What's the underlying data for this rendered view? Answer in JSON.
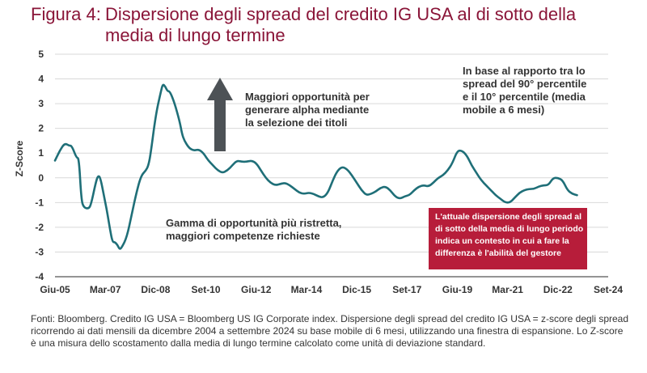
{
  "header": {
    "figure_label": "Figura 4:",
    "title_line1": "Dispersione degli spread del credito IG USA al di sotto della",
    "title_line2": "media di lungo termine"
  },
  "chart_data": {
    "type": "line",
    "ylabel": "Z-Score",
    "xlabel": "",
    "ylim": [
      -4,
      5
    ],
    "yticks": [
      "5",
      "4",
      "3",
      "2",
      "1",
      "0",
      "-1",
      "-2",
      "-3",
      "-4"
    ],
    "xtick_labels": [
      "Giu-05",
      "Mar-07",
      "Dic-08",
      "Set-10",
      "Giu-12",
      "Mar-14",
      "Dic-15",
      "Set-17",
      "Giu-19",
      "Mar-21",
      "Dic-22",
      "Set-24"
    ],
    "x_range": [
      "2005-06",
      "2024-09"
    ],
    "grid": "horizontal",
    "line_color": "#1f6f78",
    "series": [
      {
        "name": "",
        "points": [
          [
            "2005-06",
            0.7
          ],
          [
            "2005-08",
            1.1
          ],
          [
            "2005-10",
            1.4
          ],
          [
            "2005-12",
            1.3
          ],
          [
            "2006-01",
            1.3
          ],
          [
            "2006-03",
            0.8
          ],
          [
            "2006-04",
            0.8
          ],
          [
            "2006-05",
            -0.9
          ],
          [
            "2006-06",
            -1.2
          ],
          [
            "2006-08",
            -1.25
          ],
          [
            "2006-09",
            -1.1
          ],
          [
            "2006-11",
            -0.2
          ],
          [
            "2006-12",
            0.1
          ],
          [
            "2007-01",
            0.0
          ],
          [
            "2007-03",
            -1.0
          ],
          [
            "2007-04",
            -1.5
          ],
          [
            "2007-05",
            -2.1
          ],
          [
            "2007-06",
            -2.6
          ],
          [
            "2007-07",
            -2.6
          ],
          [
            "2007-08",
            -2.7
          ],
          [
            "2007-09",
            -2.9
          ],
          [
            "2007-10",
            -2.8
          ],
          [
            "2007-12",
            -2.4
          ],
          [
            "2008-02",
            -1.5
          ],
          [
            "2008-04",
            -0.6
          ],
          [
            "2008-06",
            0.1
          ],
          [
            "2008-08",
            0.3
          ],
          [
            "2008-09",
            0.5
          ],
          [
            "2008-10",
            1.0
          ],
          [
            "2008-12",
            2.5
          ],
          [
            "2009-02",
            3.4
          ],
          [
            "2009-03",
            3.8
          ],
          [
            "2009-04",
            3.7
          ],
          [
            "2009-05",
            3.5
          ],
          [
            "2009-06",
            3.5
          ],
          [
            "2009-08",
            3.0
          ],
          [
            "2009-10",
            2.3
          ],
          [
            "2009-11",
            1.8
          ],
          [
            "2009-12",
            1.5
          ],
          [
            "2010-02",
            1.2
          ],
          [
            "2010-04",
            1.1
          ],
          [
            "2010-06",
            1.15
          ],
          [
            "2010-08",
            1.0
          ],
          [
            "2010-10",
            0.7
          ],
          [
            "2010-12",
            0.5
          ],
          [
            "2011-02",
            0.3
          ],
          [
            "2011-04",
            0.2
          ],
          [
            "2011-06",
            0.3
          ],
          [
            "2011-08",
            0.5
          ],
          [
            "2011-10",
            0.7
          ],
          [
            "2011-12",
            0.65
          ],
          [
            "2012-02",
            0.65
          ],
          [
            "2012-04",
            0.7
          ],
          [
            "2012-06",
            0.6
          ],
          [
            "2012-08",
            0.3
          ],
          [
            "2012-10",
            0.0
          ],
          [
            "2012-12",
            -0.2
          ],
          [
            "2013-02",
            -0.3
          ],
          [
            "2013-04",
            -0.25
          ],
          [
            "2013-06",
            -0.2
          ],
          [
            "2013-08",
            -0.3
          ],
          [
            "2013-10",
            -0.45
          ],
          [
            "2013-12",
            -0.6
          ],
          [
            "2014-02",
            -0.65
          ],
          [
            "2014-04",
            -0.6
          ],
          [
            "2014-06",
            -0.65
          ],
          [
            "2014-08",
            -0.75
          ],
          [
            "2014-10",
            -0.8
          ],
          [
            "2014-12",
            -0.6
          ],
          [
            "2015-02",
            -0.1
          ],
          [
            "2015-04",
            0.3
          ],
          [
            "2015-06",
            0.45
          ],
          [
            "2015-08",
            0.35
          ],
          [
            "2015-10",
            0.1
          ],
          [
            "2015-12",
            -0.2
          ],
          [
            "2016-02",
            -0.5
          ],
          [
            "2016-04",
            -0.7
          ],
          [
            "2016-06",
            -0.65
          ],
          [
            "2016-08",
            -0.55
          ],
          [
            "2016-10",
            -0.4
          ],
          [
            "2016-12",
            -0.35
          ],
          [
            "2017-02",
            -0.5
          ],
          [
            "2017-04",
            -0.75
          ],
          [
            "2017-06",
            -0.85
          ],
          [
            "2017-08",
            -0.75
          ],
          [
            "2017-10",
            -0.7
          ],
          [
            "2017-12",
            -0.5
          ],
          [
            "2018-02",
            -0.35
          ],
          [
            "2018-04",
            -0.3
          ],
          [
            "2018-06",
            -0.35
          ],
          [
            "2018-08",
            -0.2
          ],
          [
            "2018-10",
            0.0
          ],
          [
            "2018-12",
            0.1
          ],
          [
            "2019-02",
            0.3
          ],
          [
            "2019-04",
            0.6
          ],
          [
            "2019-06",
            1.1
          ],
          [
            "2019-08",
            1.1
          ],
          [
            "2019-10",
            0.9
          ],
          [
            "2019-12",
            0.5
          ],
          [
            "2020-02",
            0.2
          ],
          [
            "2020-04",
            -0.1
          ],
          [
            "2020-06",
            -0.3
          ],
          [
            "2020-08",
            -0.5
          ],
          [
            "2020-10",
            -0.7
          ],
          [
            "2020-12",
            -0.85
          ],
          [
            "2021-02",
            -1.0
          ],
          [
            "2021-04",
            -1.0
          ],
          [
            "2021-06",
            -0.8
          ],
          [
            "2021-08",
            -0.6
          ],
          [
            "2021-10",
            -0.5
          ],
          [
            "2021-12",
            -0.45
          ],
          [
            "2022-02",
            -0.45
          ],
          [
            "2022-04",
            -0.35
          ],
          [
            "2022-06",
            -0.3
          ],
          [
            "2022-08",
            -0.3
          ],
          [
            "2022-10",
            0.0
          ],
          [
            "2022-12",
            0.0
          ],
          [
            "2023-02",
            -0.1
          ],
          [
            "2023-04",
            -0.5
          ],
          [
            "2023-06",
            -0.65
          ],
          [
            "2023-08",
            -0.7
          ]
        ]
      }
    ],
    "annotations": {
      "arrow_text": [
        "Maggiori opportunità per",
        "generare alpha mediante",
        "la selezione dei titoli"
      ],
      "top_right_text": [
        "In base al rapporto tra lo",
        "spread del 90° percentile",
        "e il 10° percentile (media",
        "mobile a 6 mesi)"
      ],
      "lower_text": [
        "Gamma di opportunità più ristretta,",
        "maggiori competenze richieste"
      ],
      "callout_text": [
        "L'attuale dispersione degli spread al",
        "di sotto della media di lungo periodo",
        "indica un contesto in cui a fare la",
        "differenza è l'abilità del gestore"
      ]
    }
  },
  "colors": {
    "title": "#8a1538",
    "line": "#1f6f78",
    "arrow": "#4d5256",
    "callout": "#b71d3a",
    "grid": "#d9d9d9"
  },
  "footnote": "Fonti: Bloomberg. Credito IG USA = Bloomberg US IG Corporate index. Dispersione degli spread del credito IG USA = z-score degli spread ricorrendo ai dati mensili da dicembre 2004 a settembre 2024 su base mobile di 6 mesi, utilizzando una finestra di espansione. Lo Z-score è una misura dello scostamento dalla media di lungo termine calcolato come unità di deviazione standard."
}
